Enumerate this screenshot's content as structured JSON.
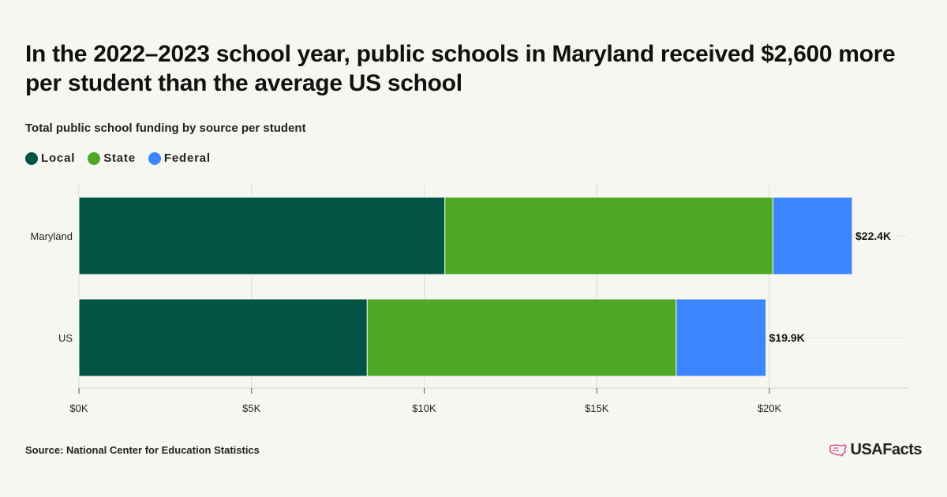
{
  "title": "In the 2022–2023 school year, public schools in Maryland received $2,600 more per student than the average US school",
  "subtitle": "Total public school funding by source per student",
  "legend": [
    {
      "label": "Local",
      "color": "#035444"
    },
    {
      "label": "State",
      "color": "#4ea725"
    },
    {
      "label": "Federal",
      "color": "#3b86ff"
    }
  ],
  "source": "Source: National Center for Education Statistics",
  "brand": {
    "name": "USAFacts",
    "icon": "us-map-outline-icon",
    "icon_color": "#e0569a"
  },
  "chart_data": {
    "type": "bar",
    "orientation": "horizontal",
    "stacked": true,
    "categories": [
      "Maryland",
      "US"
    ],
    "series": [
      {
        "name": "Local",
        "color": "#035444",
        "values": [
          10600,
          8350
        ]
      },
      {
        "name": "State",
        "color": "#4ea725",
        "values": [
          9500,
          8950
        ]
      },
      {
        "name": "Federal",
        "color": "#3b86ff",
        "values": [
          2300,
          2600
        ]
      }
    ],
    "total_labels": [
      "$22.4K",
      "$19.9K"
    ],
    "xlim": [
      0,
      24000
    ],
    "x_ticks": [
      0,
      5000,
      10000,
      15000,
      20000
    ],
    "x_tick_labels": [
      "$0K",
      "$5K",
      "$10K",
      "$15K",
      "$20K"
    ],
    "grid": true,
    "legend_position": "top-left"
  }
}
